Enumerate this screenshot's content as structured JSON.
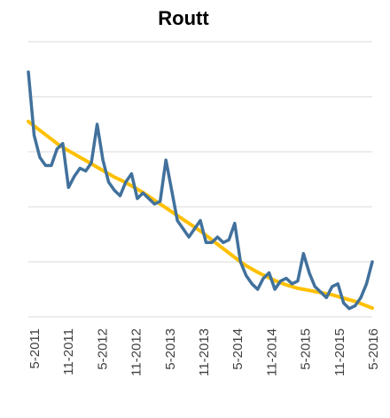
{
  "chart_data": {
    "type": "line",
    "title": "Routt",
    "xlabel": "",
    "ylabel": "",
    "grid": true,
    "legend": "none",
    "x_ticks": [
      "5-2011",
      "11-2011",
      "5-2012",
      "11-2012",
      "5-2013",
      "11-2013",
      "5-2014",
      "11-2014",
      "5-2015",
      "11-2015",
      "5-2016"
    ],
    "x_range": [
      "5-2011",
      "5-2016"
    ],
    "y_range": [
      0,
      5
    ],
    "series": [
      {
        "color": "#41719C",
        "values": [
          4.45,
          3.3,
          2.9,
          2.75,
          2.75,
          3.05,
          3.15,
          2.35,
          2.55,
          2.7,
          2.65,
          2.8,
          3.5,
          2.85,
          2.45,
          2.3,
          2.2,
          2.45,
          2.6,
          2.15,
          2.25,
          2.15,
          2.05,
          2.1,
          2.85,
          2.3,
          1.75,
          1.6,
          1.45,
          1.6,
          1.75,
          1.35,
          1.35,
          1.45,
          1.35,
          1.4,
          1.7,
          1.0,
          0.75,
          0.6,
          0.5,
          0.7,
          0.8,
          0.5,
          0.65,
          0.7,
          0.6,
          0.65,
          1.15,
          0.8,
          0.55,
          0.45,
          0.35,
          0.55,
          0.6,
          0.25,
          0.15,
          0.2,
          0.35,
          0.6,
          1.0
        ]
      },
      {
        "color": "#FFC000",
        "values": [
          3.55,
          3.47,
          3.39,
          3.31,
          3.23,
          3.15,
          3.08,
          3.02,
          2.96,
          2.9,
          2.84,
          2.78,
          2.72,
          2.66,
          2.6,
          2.54,
          2.49,
          2.44,
          2.38,
          2.32,
          2.26,
          2.19,
          2.12,
          2.05,
          1.98,
          1.91,
          1.84,
          1.77,
          1.7,
          1.63,
          1.56,
          1.48,
          1.4,
          1.32,
          1.24,
          1.16,
          1.08,
          1.0,
          0.93,
          0.87,
          0.81,
          0.76,
          0.71,
          0.66,
          0.62,
          0.58,
          0.55,
          0.52,
          0.5,
          0.48,
          0.46,
          0.44,
          0.42,
          0.4,
          0.37,
          0.34,
          0.31,
          0.28,
          0.24,
          0.2,
          0.16
        ]
      }
    ]
  }
}
